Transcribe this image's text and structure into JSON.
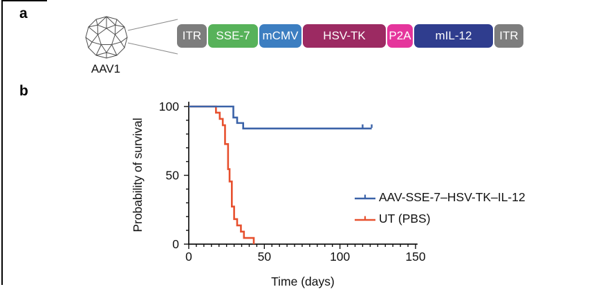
{
  "figure": {
    "panel_a_label": "a",
    "panel_b_label": "b"
  },
  "panel_a": {
    "virus_label": "AAV1",
    "capsid_icon": "aav-capsid-wireframe-icon",
    "construct_boxes": [
      {
        "label": "ITR",
        "color": "#7d7d7d",
        "width": 43
      },
      {
        "label": "SSE-7",
        "color": "#57b25a",
        "width": 72
      },
      {
        "label": "mCMV",
        "color": "#3c7ec1",
        "width": 61
      },
      {
        "label": "HSV-TK",
        "color": "#9c2a62",
        "width": 120
      },
      {
        "label": "P2A",
        "color": "#e5359c",
        "width": 37
      },
      {
        "label": "mIL-12",
        "color": "#2f3d8e",
        "width": 114
      },
      {
        "label": "ITR",
        "color": "#7d7d7d",
        "width": 42
      }
    ]
  },
  "chart_data": {
    "type": "line",
    "subtype": "kaplan_meier_survival_step",
    "title": "",
    "xlabel": "Time (days)",
    "ylabel": "Probability of survival",
    "xlim": [
      0,
      150
    ],
    "ylim": [
      0,
      100
    ],
    "x_ticks": [
      0,
      50,
      100,
      150
    ],
    "y_ticks": [
      0,
      50,
      100
    ],
    "x_minor_tick_step": 5,
    "y_minor_tick_step": 10,
    "grid": false,
    "legend_position": "right-center",
    "series": [
      {
        "name": "AAV-SSE-7–HSV-TK–IL-12",
        "color": "#3a62a8",
        "steps": [
          [
            0,
            100
          ],
          [
            29.5,
            92
          ],
          [
            32,
            88
          ],
          [
            36,
            84
          ],
          [
            121,
            84
          ]
        ],
        "censor_marks": [
          [
            115,
            84
          ],
          [
            121,
            84
          ]
        ]
      },
      {
        "name": "UT (PBS)",
        "color": "#e7502e",
        "steps": [
          [
            0,
            100
          ],
          [
            18,
            95.5
          ],
          [
            20.5,
            91
          ],
          [
            22.5,
            86.4
          ],
          [
            24,
            72.7
          ],
          [
            26,
            54.5
          ],
          [
            27,
            45.5
          ],
          [
            28.5,
            27.3
          ],
          [
            30,
            18.2
          ],
          [
            32,
            13.6
          ],
          [
            34.5,
            9.1
          ],
          [
            36.5,
            4.5
          ],
          [
            43,
            0
          ]
        ],
        "censor_marks": []
      }
    ]
  }
}
